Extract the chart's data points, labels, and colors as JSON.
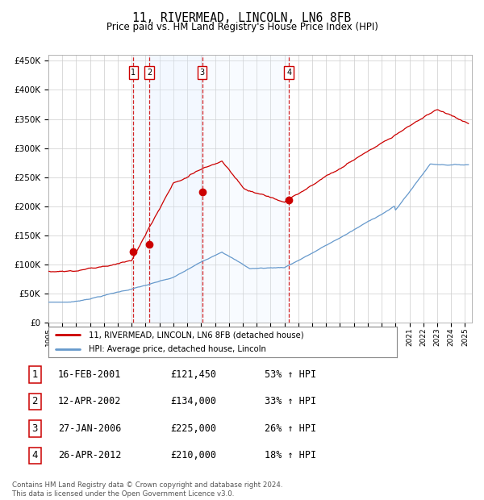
{
  "title": "11, RIVERMEAD, LINCOLN, LN6 8FB",
  "subtitle": "Price paid vs. HM Land Registry's House Price Index (HPI)",
  "ylim": [
    0,
    460000
  ],
  "yticks": [
    0,
    50000,
    100000,
    150000,
    200000,
    250000,
    300000,
    350000,
    400000,
    450000
  ],
  "ytick_labels": [
    "£0",
    "£50K",
    "£100K",
    "£150K",
    "£200K",
    "£250K",
    "£300K",
    "£350K",
    "£400K",
    "£450K"
  ],
  "xlim_start": 1995.0,
  "xlim_end": 2025.5,
  "xticks": [
    1995,
    1996,
    1997,
    1998,
    1999,
    2000,
    2001,
    2002,
    2003,
    2004,
    2005,
    2006,
    2007,
    2008,
    2009,
    2010,
    2011,
    2012,
    2013,
    2014,
    2015,
    2016,
    2017,
    2018,
    2019,
    2020,
    2021,
    2022,
    2023,
    2024,
    2025
  ],
  "red_color": "#cc0000",
  "blue_color": "#6699cc",
  "grid_color": "#cccccc",
  "vline_color": "#cc0000",
  "shade_color": "#ddeeff",
  "transaction_labels": [
    "1",
    "2",
    "3",
    "4"
  ],
  "transaction_dates": [
    2001.12,
    2002.28,
    2006.07,
    2012.32
  ],
  "transaction_prices": [
    121450,
    134000,
    225000,
    210000
  ],
  "legend_label_red": "11, RIVERMEAD, LINCOLN, LN6 8FB (detached house)",
  "legend_label_blue": "HPI: Average price, detached house, Lincoln",
  "table_entries": [
    {
      "num": "1",
      "date": "16-FEB-2001",
      "price": "£121,450",
      "pct": "53% ↑ HPI"
    },
    {
      "num": "2",
      "date": "12-APR-2002",
      "price": "£134,000",
      "pct": "33% ↑ HPI"
    },
    {
      "num": "3",
      "date": "27-JAN-2006",
      "price": "£225,000",
      "pct": "26% ↑ HPI"
    },
    {
      "num": "4",
      "date": "26-APR-2012",
      "price": "£210,000",
      "pct": "18% ↑ HPI"
    }
  ],
  "footer": "Contains HM Land Registry data © Crown copyright and database right 2024.\nThis data is licensed under the Open Government Licence v3.0.",
  "background_color": "#ffffff"
}
